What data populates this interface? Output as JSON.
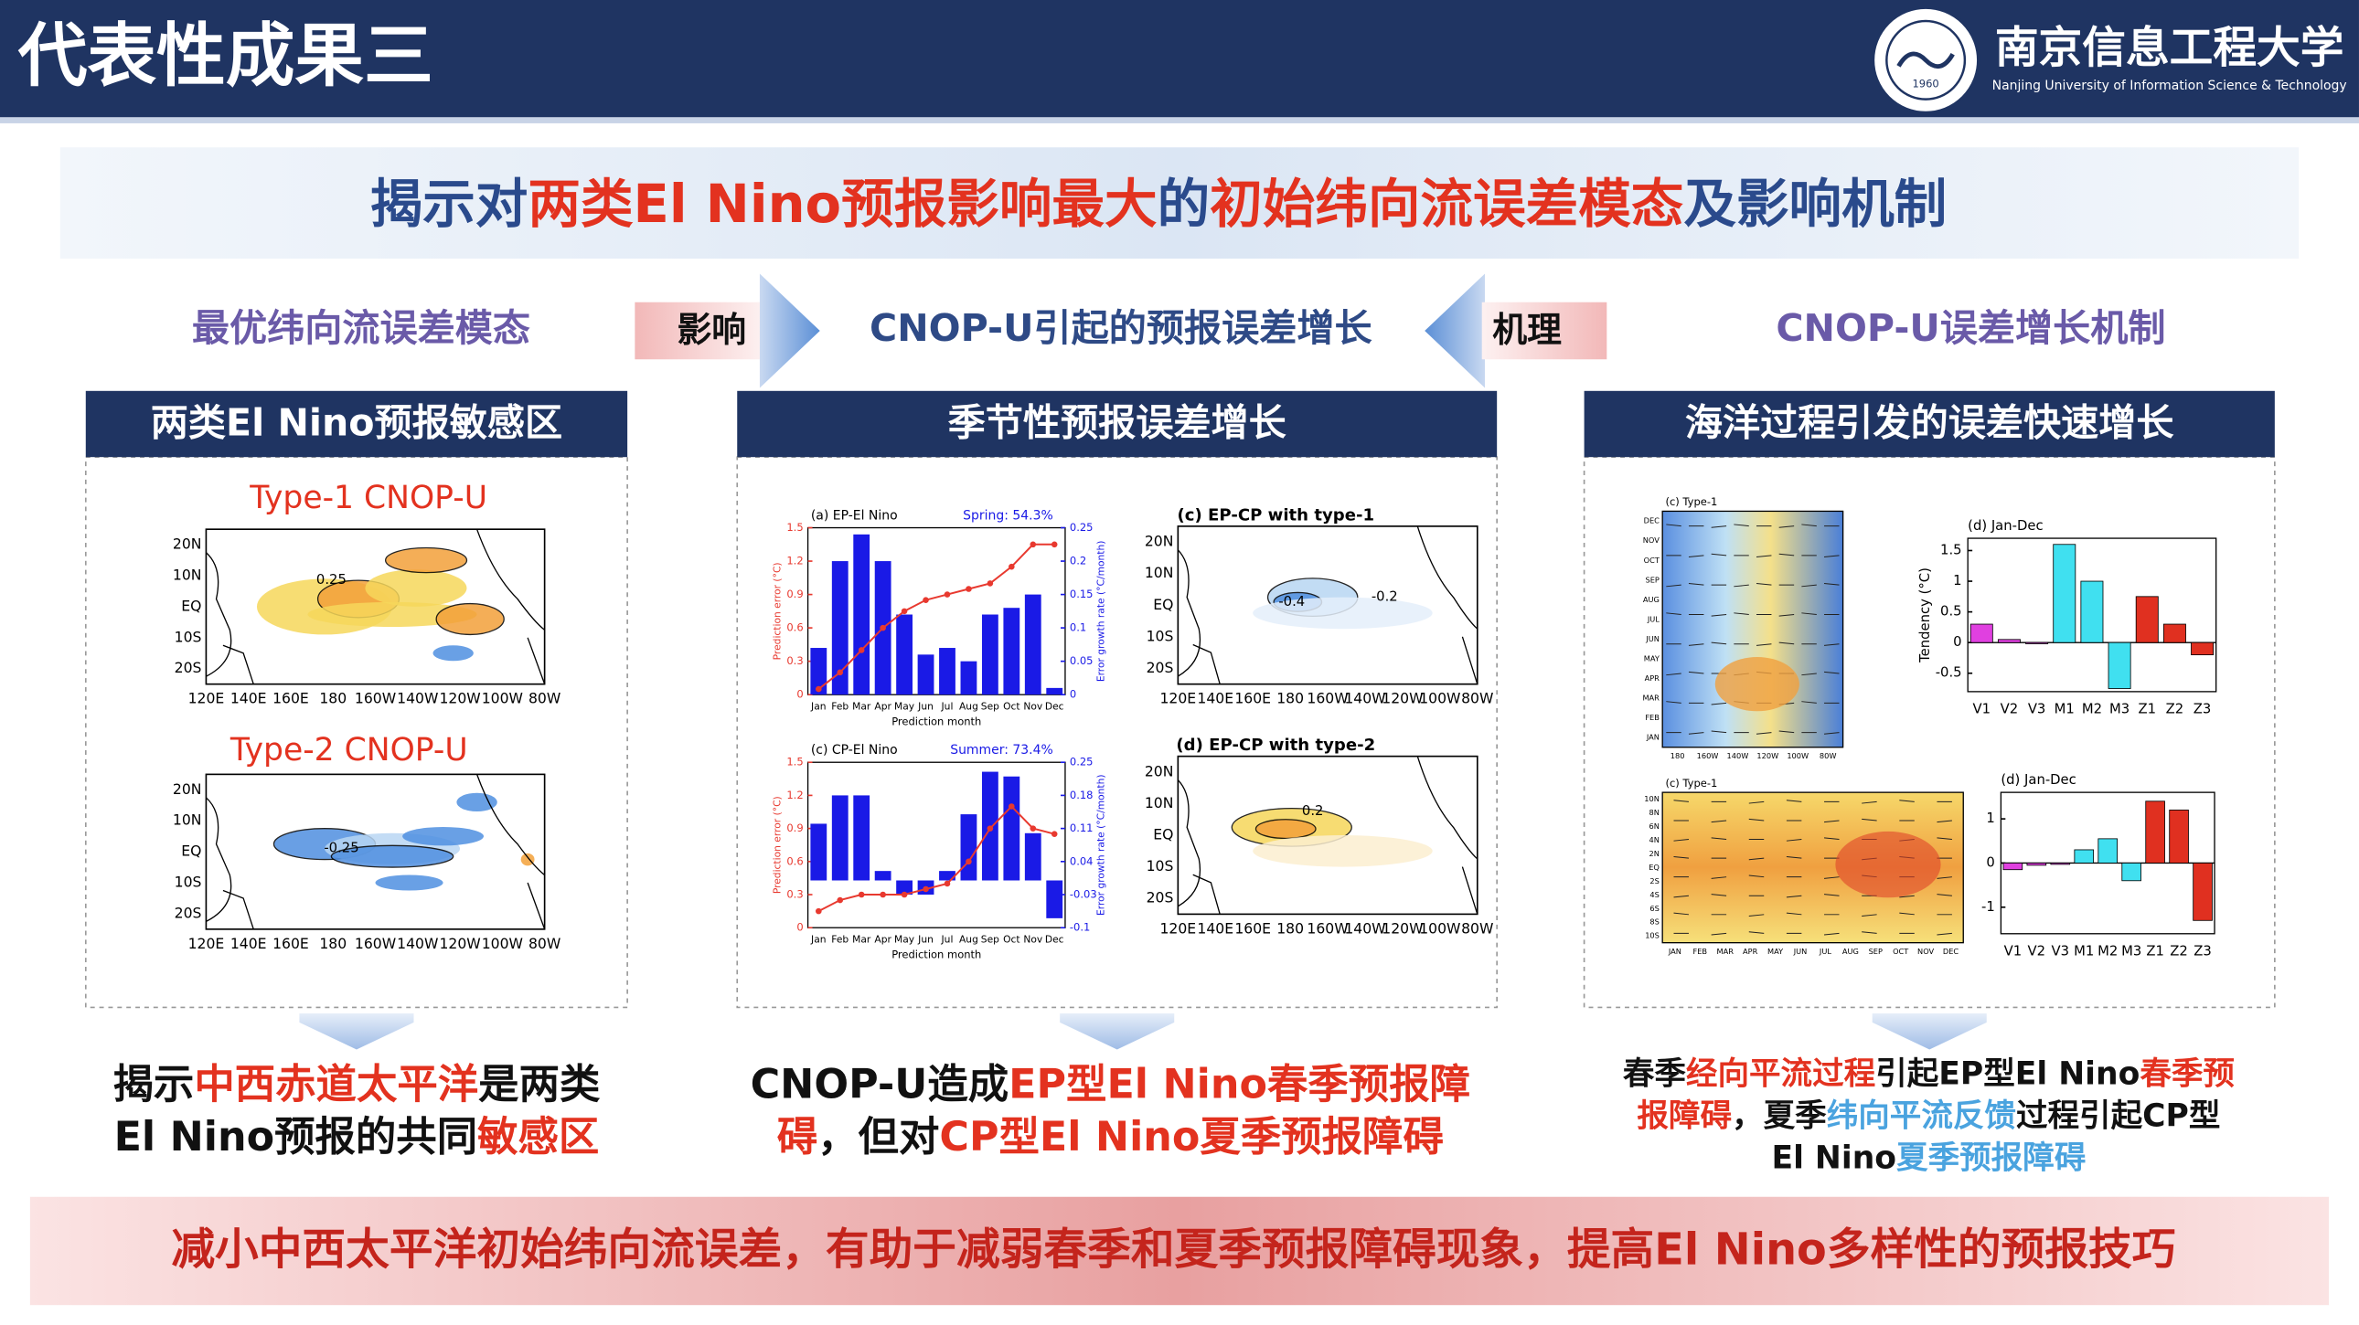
{
  "header": {
    "title": "代表性成果三",
    "university": "南京信息工程大学",
    "university_en": "Nanjing University of Information Science & Technology",
    "logo_year": "1960"
  },
  "headline": [
    {
      "text": "揭示对"
    },
    {
      "text": "两类El Nino预报影响最大",
      "color": "red"
    },
    {
      "text": "的"
    },
    {
      "text": "初始纬向流误差模态",
      "color": "red"
    },
    {
      "text": "及影响机制"
    }
  ],
  "flow": {
    "left": "最优纬向流误差模态",
    "arrow_right": "影响",
    "center": "CNOP-U引起的预报误差增长",
    "arrow_left": "机理",
    "right": "CNOP-U误差增长机制"
  },
  "panels": [
    {
      "title": "两类El Nino预报敏感区",
      "lat_labels": [
        "20N",
        "10N",
        "EQ",
        "10S",
        "20S"
      ],
      "lon_labels": [
        "120E",
        "140E",
        "160E",
        "180",
        "160W",
        "140W",
        "120W",
        "100W",
        "80W"
      ],
      "maps": [
        {
          "title": "Type-1 CNOP-U",
          "contour_labels": [
            "0.25"
          ]
        },
        {
          "title": "Type-2 CNOP-U",
          "contour_labels": [
            "-0.25"
          ]
        }
      ],
      "conclusion": [
        [
          {
            "text": "揭示"
          },
          {
            "text": "中西赤道太平洋",
            "color": "red"
          },
          {
            "text": "是两类"
          }
        ],
        [
          {
            "text": "El Nino预报的共同"
          },
          {
            "text": "敏感区",
            "color": "red"
          }
        ]
      ]
    },
    {
      "title": "季节性预报误差增长",
      "charts": [
        {
          "type": "bar-line",
          "title": "(a) EP-El Nino",
          "annotation": "Spring: 54.3%",
          "xlabel": "Prediction month",
          "ylabel": "Prediction error (°C)",
          "y2label": "Error growth rate (°C/month)",
          "categories": [
            "Jan",
            "Feb",
            "Mar",
            "Apr",
            "May",
            "Jun",
            "Jul",
            "Aug",
            "Sep",
            "Oct",
            "Nov",
            "Dec"
          ],
          "line": {
            "color": "#e8392f",
            "values": [
              0.05,
              0.2,
              0.4,
              0.6,
              0.75,
              0.85,
              0.9,
              0.95,
              1.0,
              1.15,
              1.35,
              1.35
            ]
          },
          "bars": {
            "color": "#1a1ae6",
            "axis": "y2",
            "values": [
              0.07,
              0.2,
              0.24,
              0.2,
              0.12,
              0.06,
              0.07,
              0.05,
              0.12,
              0.13,
              0.15,
              0.01
            ]
          },
          "ylim": [
            0,
            1.5
          ],
          "yticks": [
            0,
            0.3,
            0.6,
            0.9,
            1.2,
            1.5
          ],
          "y2lim": [
            0,
            0.25
          ],
          "y2ticks": [
            0,
            0.05,
            0.1,
            0.15,
            0.2,
            0.25
          ]
        },
        {
          "type": "bar-line",
          "title": "(c) CP-El Nino",
          "annotation": "Summer: 73.4%",
          "xlabel": "Prediction month",
          "ylabel": "Prediction error (°C)",
          "y2label": "Error growth rate (°C/month)",
          "categories": [
            "Jan",
            "Feb",
            "Mar",
            "Apr",
            "May",
            "Jun",
            "Jul",
            "Aug",
            "Sep",
            "Oct",
            "Nov",
            "Dec"
          ],
          "line": {
            "color": "#e8392f",
            "values": [
              0.15,
              0.25,
              0.3,
              0.3,
              0.3,
              0.35,
              0.4,
              0.6,
              0.9,
              1.1,
              0.9,
              0.85
            ]
          },
          "bars": {
            "color": "#1a1ae6",
            "axis": "y2",
            "values": [
              0.12,
              0.18,
              0.18,
              0.02,
              -0.03,
              -0.03,
              0.02,
              0.14,
              0.23,
              0.22,
              0.1,
              -0.08
            ]
          },
          "ylim": [
            0,
            1.5
          ],
          "yticks": [
            0,
            0.3,
            0.6,
            0.9,
            1.2,
            1.5
          ],
          "y2lim": [
            -0.1,
            0.25
          ],
          "y2ticks": [
            -0.1,
            -0.03,
            0.04,
            0.11,
            0.18,
            0.25
          ]
        }
      ],
      "lat_labels": [
        "20N",
        "10N",
        "EQ",
        "10S",
        "20S"
      ],
      "lon_labels": [
        "120E",
        "140E",
        "160E",
        "180",
        "160W",
        "140W",
        "120W",
        "100W",
        "80W"
      ],
      "maps": [
        {
          "title": "(c) EP-CP with type-1",
          "contour_labels": [
            "-0.4",
            "-0.2"
          ]
        },
        {
          "title": "(d) EP-CP with type-2",
          "contour_labels": [
            "0.2"
          ]
        }
      ],
      "conclusion": [
        [
          {
            "text": "CNOP-U造成"
          },
          {
            "text": "EP型El Nino春季预报障",
            "color": "red"
          }
        ],
        [
          {
            "text": "碍",
            "color": "red"
          },
          {
            "text": "，但对"
          },
          {
            "text": "CP型El Nino夏季预报障碍",
            "color": "red"
          }
        ]
      ]
    },
    {
      "title": "海洋过程引发的误差快速增长",
      "hovmoller": [
        {
          "title": "(c) Type-1",
          "y_labels": [
            "DEC",
            "NOV",
            "OCT",
            "SEP",
            "AUG",
            "JUL",
            "JUN",
            "MAY",
            "APR",
            "MAR",
            "FEB",
            "JAN"
          ],
          "x_labels": [
            "180",
            "160W",
            "140W",
            "120W",
            "100W",
            "80W"
          ]
        },
        {
          "title": "(c) Type-1",
          "y_labels": [
            "10N",
            "8N",
            "6N",
            "4N",
            "2N",
            "EQ",
            "2S",
            "4S",
            "6S",
            "8S",
            "10S"
          ],
          "x_labels": [
            "JAN",
            "FEB",
            "MAR",
            "APR",
            "MAY",
            "JUN",
            "JUL",
            "AUG",
            "SEP",
            "OCT",
            "NOV",
            "DEC"
          ]
        }
      ],
      "bar_charts": [
        {
          "type": "bar",
          "title": "(d) Jan-Dec",
          "ylabel": "Tendency (°C)",
          "categories": [
            "V1",
            "V2",
            "V3",
            "M1",
            "M2",
            "M3",
            "Z1",
            "Z2",
            "Z3"
          ],
          "values": [
            0.3,
            0.05,
            0,
            1.6,
            1.0,
            -0.75,
            0.75,
            0.3,
            -0.2
          ],
          "colors": [
            "#e040e0",
            "#e040e0",
            "#e040e0",
            "#40e0f0",
            "#40e0f0",
            "#40e0f0",
            "#e03020",
            "#e03020",
            "#e03020"
          ],
          "ylim": [
            -0.8,
            1.7
          ],
          "yticks": [
            -0.5,
            0,
            0.5,
            1,
            1.5
          ]
        },
        {
          "type": "bar",
          "title": "(d) Jan-Dec",
          "categories": [
            "V1",
            "V2",
            "V3",
            "M1",
            "M2",
            "M3",
            "Z1",
            "Z2",
            "Z3"
          ],
          "values": [
            -0.15,
            -0.05,
            -0.03,
            0.3,
            0.55,
            -0.4,
            1.4,
            1.2,
            -1.3
          ],
          "colors": [
            "#e040e0",
            "#e040e0",
            "#e040e0",
            "#40e0f0",
            "#40e0f0",
            "#40e0f0",
            "#e03020",
            "#e03020",
            "#e03020"
          ],
          "ylim": [
            -1.6,
            1.6
          ],
          "yticks": [
            -1,
            0,
            1
          ]
        }
      ],
      "conclusion": [
        [
          {
            "text": "春季"
          },
          {
            "text": "经向平流过程",
            "color": "red"
          },
          {
            "text": "引起EP型El Nino"
          },
          {
            "text": "春季预",
            "color": "red"
          }
        ],
        [
          {
            "text": "报障碍",
            "color": "red"
          },
          {
            "text": "，夏季"
          },
          {
            "text": "纬向平流反馈",
            "color": "blue"
          },
          {
            "text": "过程引起CP型"
          }
        ],
        [
          {
            "text": "El Nino"
          },
          {
            "text": "夏季预报障碍",
            "color": "blue"
          }
        ]
      ]
    }
  ],
  "bottom": "减小中西太平洋初始纬向流误差，有助于减弱春季和夏季预报障碍现象，提高El Nino多样性的预报技巧"
}
